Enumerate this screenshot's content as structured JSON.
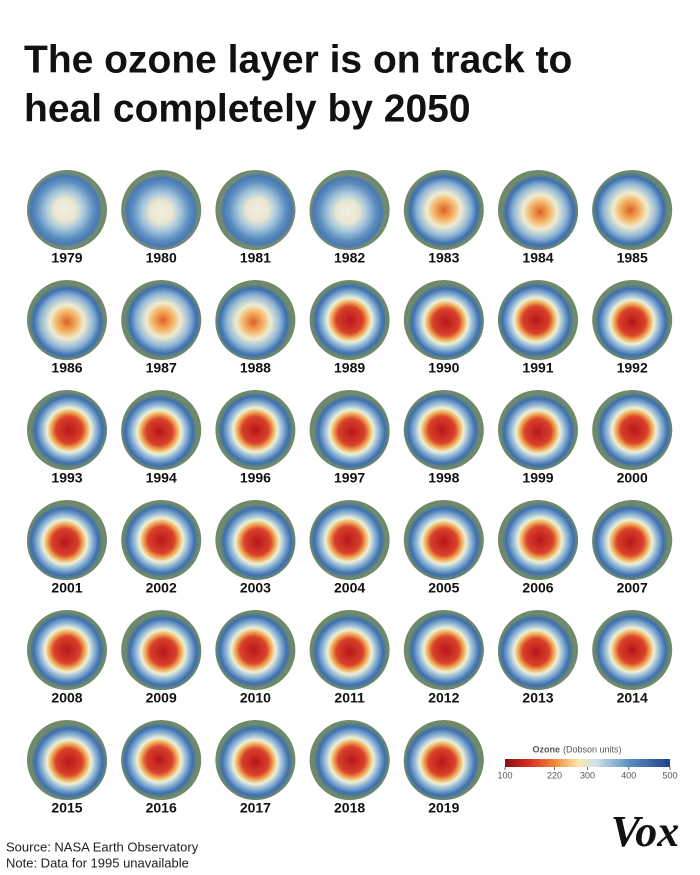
{
  "header": {
    "title": [
      "The ozone layer is on track to",
      "heal completely by 2050"
    ]
  },
  "years": [
    "1979",
    "1980",
    "1981",
    "1982",
    "1983",
    "1984",
    "1985",
    "1986",
    "1987",
    "1988",
    "1989",
    "1990",
    "1991",
    "1992",
    "1993",
    "1994",
    "1996",
    "1997",
    "1998",
    "1999",
    "2000",
    "2001",
    "2002",
    "2003",
    "2004",
    "2005",
    "2006",
    "2007",
    "2008",
    "2009",
    "2010",
    "2011",
    "2012",
    "2013",
    "2014",
    "2015",
    "2016",
    "2017",
    "2018",
    "2019"
  ],
  "legend": {
    "title": "Ozone",
    "unit": "(Dobson units)",
    "lim": [
      100,
      500
    ],
    "ticks": [
      100,
      220,
      300,
      400,
      500
    ]
  },
  "footer": {
    "source": "Source: NASA Earth Observatory",
    "note": "Note: Data for 1995 unavailable",
    "logo": "Vox"
  }
}
